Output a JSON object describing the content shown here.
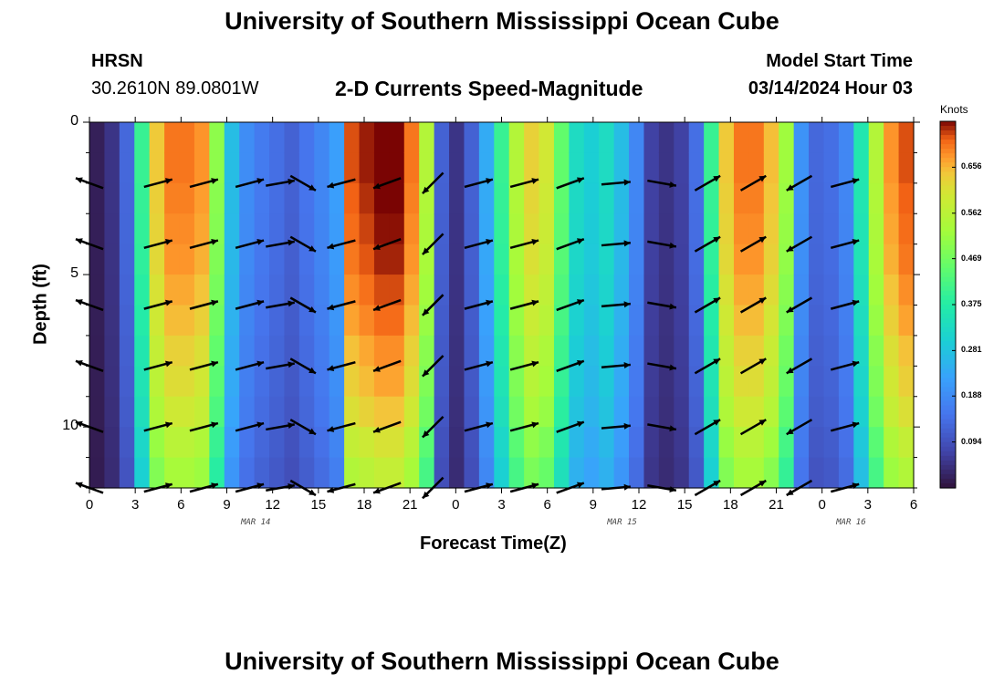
{
  "header": {
    "title": "University of Southern Mississippi Ocean Cube",
    "station_name": "HRSN",
    "station_coords": "30.2610N  89.0801W",
    "plot_title": "2-D Currents Speed-Magnitude",
    "model_start_label": "Model Start Time",
    "model_start_value": "03/14/2024 Hour 03",
    "footer_title": "University of Southern Mississippi Ocean Cube"
  },
  "chart_data": {
    "type": "heatmap",
    "title": "2-D Currents Speed-Magnitude",
    "xlabel": "Forecast Time(Z)",
    "ylabel": "Depth (ft)",
    "x_tick_labels": [
      "0",
      "3",
      "6",
      "9",
      "12",
      "15",
      "18",
      "21",
      "0",
      "3",
      "6",
      "9",
      "12",
      "15",
      "18",
      "21",
      "0",
      "3",
      "6"
    ],
    "x_range_hours": [
      0,
      54
    ],
    "date_labels": [
      {
        "label": "MAR 14",
        "hour": 11
      },
      {
        "label": "MAR 15",
        "hour": 35
      },
      {
        "label": "MAR 16",
        "hour": 50
      }
    ],
    "y_tick_labels": [
      "0",
      "5",
      "10"
    ],
    "y_tick_values": [
      0,
      5,
      10
    ],
    "y_range_ft": [
      0,
      12
    ],
    "colorbar": {
      "label": "Knots",
      "ticks": [
        "0.656",
        "0.562",
        "0.469",
        "0.375",
        "0.281",
        "0.188",
        "0.094"
      ],
      "range": [
        0.0,
        0.75
      ]
    },
    "surface_speed_by_hour": [
      0.02,
      0.05,
      0.13,
      0.4,
      0.64,
      0.7,
      0.7,
      0.68,
      0.5,
      0.27,
      0.19,
      0.16,
      0.14,
      0.12,
      0.15,
      0.18,
      0.22,
      0.72,
      0.74,
      0.76,
      0.76,
      0.7,
      0.55,
      0.12,
      0.05,
      0.12,
      0.24,
      0.4,
      0.55,
      0.63,
      0.6,
      0.45,
      0.33,
      0.3,
      0.33,
      0.27,
      0.18,
      0.07,
      0.05,
      0.07,
      0.14,
      0.4,
      0.64,
      0.7,
      0.7,
      0.65,
      0.52,
      0.2,
      0.13,
      0.14,
      0.18,
      0.36,
      0.55,
      0.68,
      0.72
    ],
    "depth_factor": [
      1.0,
      1.0,
      0.99,
      0.98,
      0.97,
      0.95,
      0.93,
      0.9,
      0.88,
      0.85,
      0.8,
      0.76
    ],
    "arrow_rows_ft": [
      2,
      4,
      6,
      8,
      10,
      12
    ],
    "arrow_direction_by_hour": {
      "0": 290,
      "4.5": 75,
      "7.5": 75,
      "10.5": 75,
      "12.5": 80,
      "14": 120,
      "16.5": 255,
      "19.5": 250,
      "22.5": 225,
      "25.5": 75,
      "28.5": 75,
      "31.5": 70,
      "34.5": 85,
      "37.5": 100,
      "40.5": 60,
      "43.5": 60,
      "46.5": 240,
      "49.5": 75
    }
  }
}
